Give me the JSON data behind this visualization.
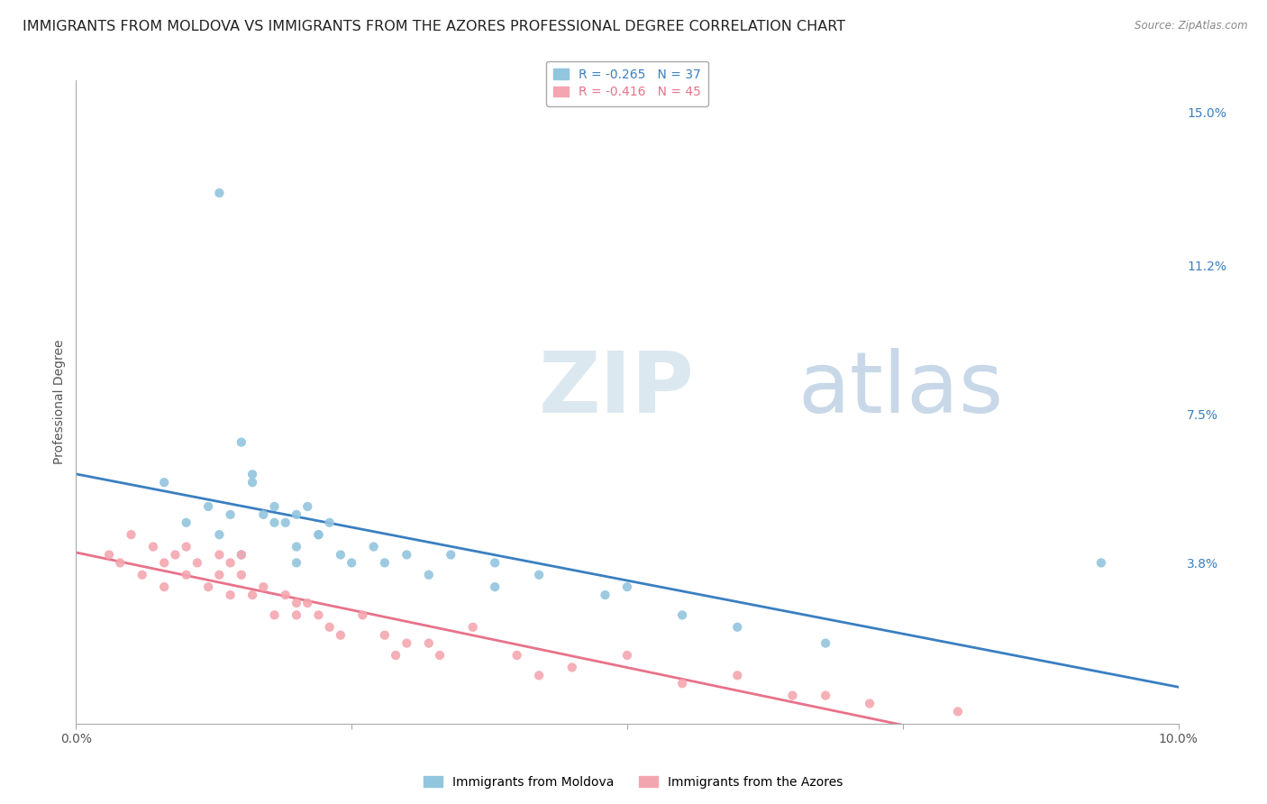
{
  "title": "IMMIGRANTS FROM MOLDOVA VS IMMIGRANTS FROM THE AZORES PROFESSIONAL DEGREE CORRELATION CHART",
  "source": "Source: ZipAtlas.com",
  "ylabel": "Professional Degree",
  "series1_label": "Immigrants from Moldova",
  "series2_label": "Immigrants from the Azores",
  "series1_R": -0.265,
  "series1_N": 37,
  "series2_R": -0.416,
  "series2_N": 45,
  "series1_color": "#92c5de",
  "series2_color": "#f4a6b0",
  "trendline1_color": "#3a7fc1",
  "trendline2_color": "#e8728a",
  "xmin": 0.0,
  "xmax": 0.1,
  "ymin": -0.002,
  "ymax": 0.158,
  "right_yticks": [
    0.0,
    0.038,
    0.075,
    0.112,
    0.15
  ],
  "right_yticklabels": [
    "",
    "3.8%",
    "7.5%",
    "11.2%",
    "15.0%"
  ],
  "watermark_zip": "ZIP",
  "watermark_atlas": "atlas",
  "background_color": "#ffffff",
  "grid_color": "#d8d8d8",
  "title_fontsize": 11.5,
  "axis_label_fontsize": 10,
  "tick_fontsize": 10,
  "series1_x": [
    0.013,
    0.015,
    0.016,
    0.008,
    0.012,
    0.014,
    0.016,
    0.017,
    0.018,
    0.01,
    0.013,
    0.018,
    0.019,
    0.02,
    0.021,
    0.022,
    0.023,
    0.015,
    0.02,
    0.022,
    0.024,
    0.025,
    0.027,
    0.03,
    0.02,
    0.028,
    0.032,
    0.034,
    0.038,
    0.038,
    0.042,
    0.048,
    0.05,
    0.055,
    0.06,
    0.068,
    0.093
  ],
  "series1_y": [
    0.13,
    0.068,
    0.06,
    0.058,
    0.052,
    0.05,
    0.058,
    0.05,
    0.048,
    0.048,
    0.045,
    0.052,
    0.048,
    0.05,
    0.052,
    0.045,
    0.048,
    0.04,
    0.042,
    0.045,
    0.04,
    0.038,
    0.042,
    0.04,
    0.038,
    0.038,
    0.035,
    0.04,
    0.038,
    0.032,
    0.035,
    0.03,
    0.032,
    0.025,
    0.022,
    0.018,
    0.038
  ],
  "series2_x": [
    0.003,
    0.004,
    0.005,
    0.006,
    0.007,
    0.008,
    0.008,
    0.009,
    0.01,
    0.01,
    0.011,
    0.012,
    0.013,
    0.013,
    0.014,
    0.014,
    0.015,
    0.015,
    0.016,
    0.017,
    0.018,
    0.019,
    0.02,
    0.02,
    0.021,
    0.022,
    0.023,
    0.024,
    0.026,
    0.028,
    0.029,
    0.03,
    0.032,
    0.033,
    0.036,
    0.04,
    0.042,
    0.045,
    0.05,
    0.055,
    0.06,
    0.065,
    0.068,
    0.072,
    0.08
  ],
  "series2_y": [
    0.04,
    0.038,
    0.045,
    0.035,
    0.042,
    0.038,
    0.032,
    0.04,
    0.035,
    0.042,
    0.038,
    0.032,
    0.04,
    0.035,
    0.038,
    0.03,
    0.035,
    0.04,
    0.03,
    0.032,
    0.025,
    0.03,
    0.025,
    0.028,
    0.028,
    0.025,
    0.022,
    0.02,
    0.025,
    0.02,
    0.015,
    0.018,
    0.018,
    0.015,
    0.022,
    0.015,
    0.01,
    0.012,
    0.015,
    0.008,
    0.01,
    0.005,
    0.005,
    0.003,
    0.001
  ]
}
